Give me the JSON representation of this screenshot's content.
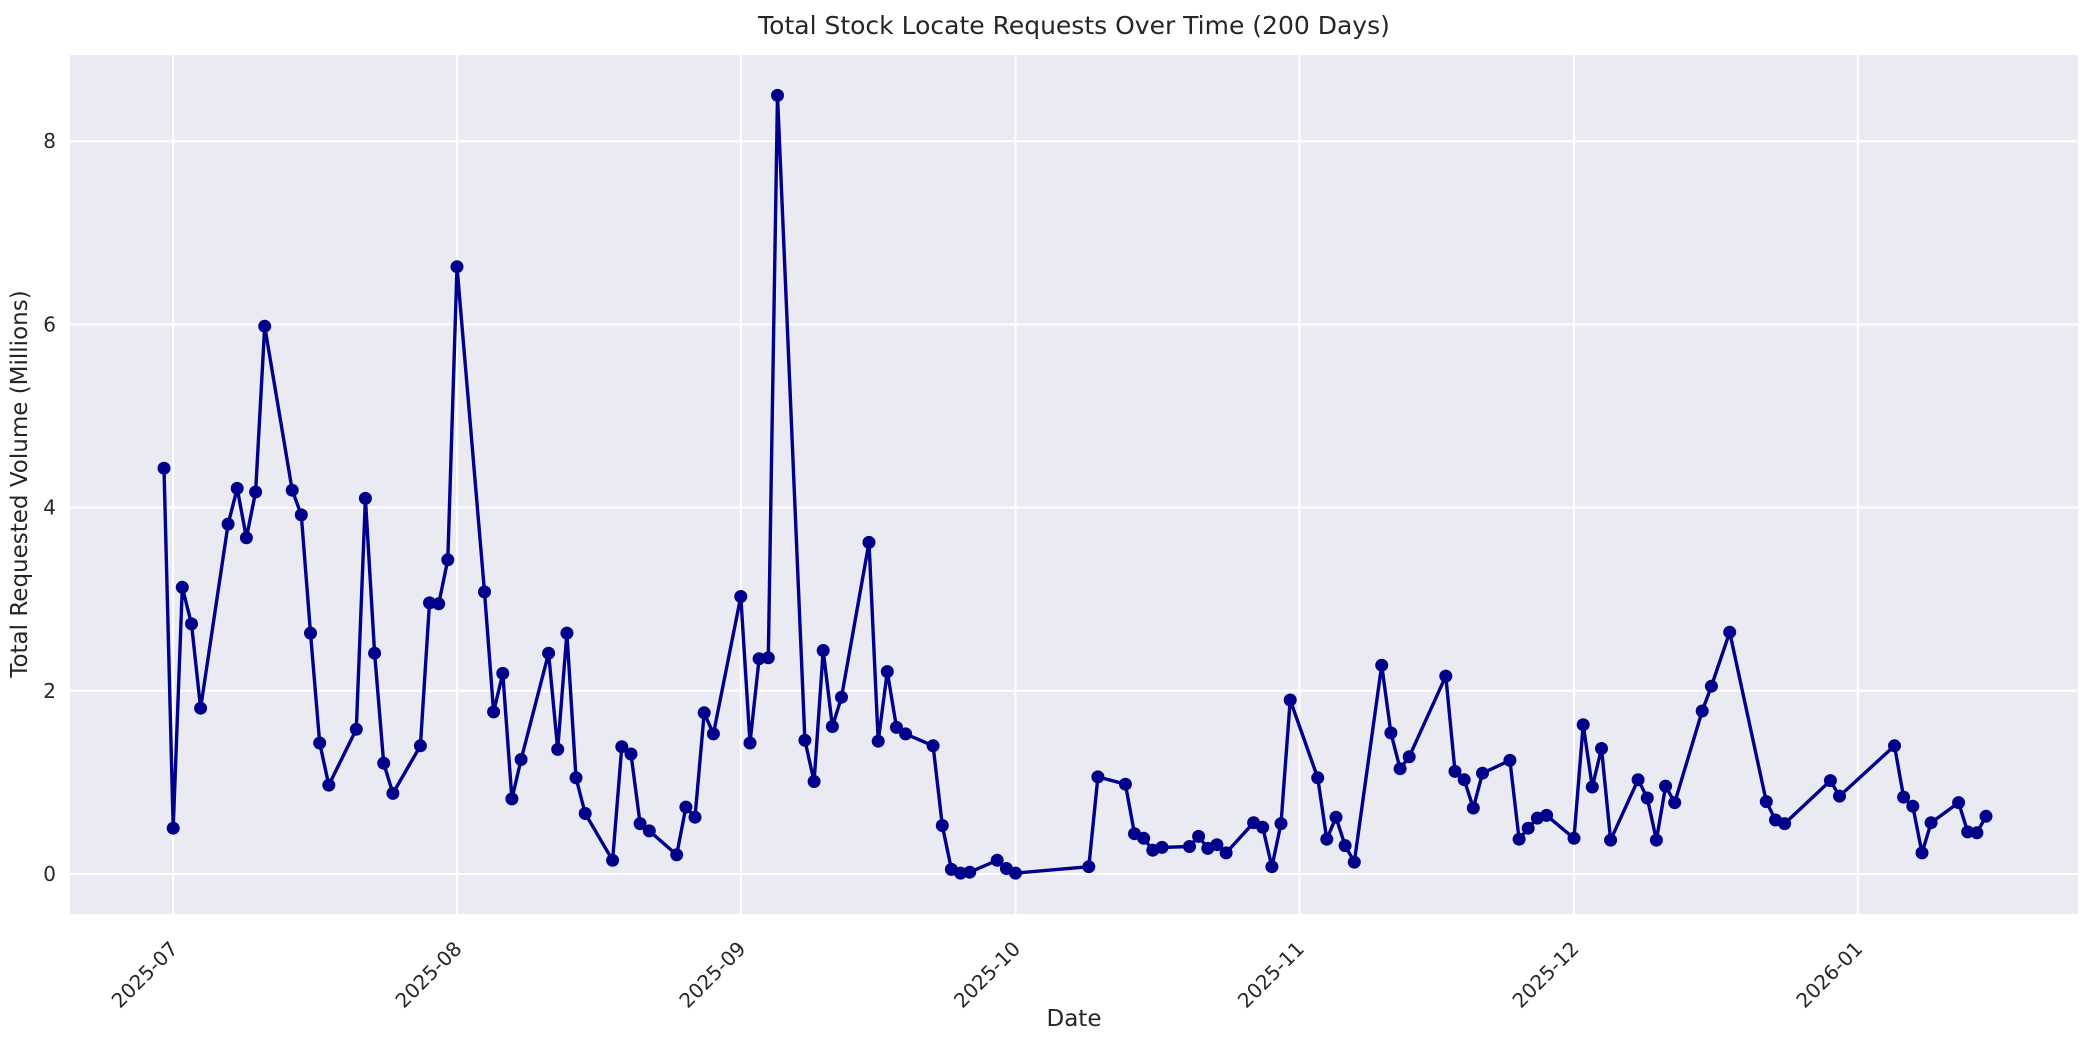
{
  "figure": {
    "title": "Total Stock Locate Requests Over Time (200 Days)",
    "xlabel": "Date",
    "ylabel": "Total Requested Volume (Millions)"
  },
  "style": {
    "plot_bg": "#eaeaf2",
    "grid_color": "#ffffff",
    "line_color": "#00008b",
    "marker_color": "#00008b",
    "text_color": "#262626",
    "figure_bg": "#ffffff"
  },
  "chart_data": {
    "type": "line",
    "title": "Total Stock Locate Requests Over Time (200 Days)",
    "xlabel": "Date",
    "ylabel": "Total Requested Volume (Millions)",
    "legend": "none",
    "grid": true,
    "marker": "circle",
    "ylim": [
      -0.43,
      8.93
    ],
    "y_ticks": [
      0,
      2,
      4,
      6,
      8
    ],
    "x_range": [
      "2025-06-30",
      "2026-01-15"
    ],
    "x_ticks": [
      {
        "label": "2025-07",
        "date": "2025-07-01"
      },
      {
        "label": "2025-08",
        "date": "2025-08-01"
      },
      {
        "label": "2025-09",
        "date": "2025-09-01"
      },
      {
        "label": "2025-10",
        "date": "2025-10-01"
      },
      {
        "label": "2025-11",
        "date": "2025-11-01"
      },
      {
        "label": "2025-12",
        "date": "2025-12-01"
      },
      {
        "label": "2026-01",
        "date": "2026-01-01"
      }
    ],
    "dates": [
      "2025-06-30",
      "2025-07-01",
      "2025-07-02",
      "2025-07-03",
      "2025-07-04",
      "2025-07-07",
      "2025-07-08",
      "2025-07-09",
      "2025-07-10",
      "2025-07-11",
      "2025-07-14",
      "2025-07-15",
      "2025-07-16",
      "2025-07-17",
      "2025-07-18",
      "2025-07-21",
      "2025-07-22",
      "2025-07-23",
      "2025-07-24",
      "2025-07-25",
      "2025-07-28",
      "2025-07-29",
      "2025-07-30",
      "2025-07-31",
      "2025-08-01",
      "2025-08-04",
      "2025-08-05",
      "2025-08-06",
      "2025-08-07",
      "2025-08-08",
      "2025-08-11",
      "2025-08-12",
      "2025-08-13",
      "2025-08-14",
      "2025-08-15",
      "2025-08-18",
      "2025-08-19",
      "2025-08-20",
      "2025-08-21",
      "2025-08-22",
      "2025-08-25",
      "2025-08-26",
      "2025-08-27",
      "2025-08-28",
      "2025-08-29",
      "2025-09-01",
      "2025-09-02",
      "2025-09-03",
      "2025-09-04",
      "2025-09-05",
      "2025-09-08",
      "2025-09-09",
      "2025-09-10",
      "2025-09-11",
      "2025-09-12",
      "2025-09-15",
      "2025-09-16",
      "2025-09-17",
      "2025-09-18",
      "2025-09-19",
      "2025-09-22",
      "2025-09-23",
      "2025-09-24",
      "2025-09-25",
      "2025-09-26",
      "2025-09-29",
      "2025-09-30",
      "2025-10-01",
      "2025-10-09",
      "2025-10-10",
      "2025-10-13",
      "2025-10-14",
      "2025-10-15",
      "2025-10-16",
      "2025-10-17",
      "2025-10-20",
      "2025-10-21",
      "2025-10-22",
      "2025-10-23",
      "2025-10-24",
      "2025-10-27",
      "2025-10-28",
      "2025-10-29",
      "2025-10-30",
      "2025-10-31",
      "2025-11-03",
      "2025-11-04",
      "2025-11-05",
      "2025-11-06",
      "2025-11-07",
      "2025-11-10",
      "2025-11-11",
      "2025-11-12",
      "2025-11-13",
      "2025-11-17",
      "2025-11-18",
      "2025-11-19",
      "2025-11-20",
      "2025-11-21",
      "2025-11-24",
      "2025-11-25",
      "2025-11-26",
      "2025-11-27",
      "2025-11-28",
      "2025-12-01",
      "2025-12-02",
      "2025-12-03",
      "2025-12-04",
      "2025-12-05",
      "2025-12-08",
      "2025-12-09",
      "2025-12-10",
      "2025-12-11",
      "2025-12-12",
      "2025-12-15",
      "2025-12-16",
      "2025-12-18",
      "2025-12-22",
      "2025-12-23",
      "2025-12-24",
      "2025-12-29",
      "2025-12-30",
      "2026-01-05",
      "2026-01-06",
      "2026-01-07",
      "2026-01-08",
      "2026-01-09",
      "2026-01-12",
      "2026-01-13",
      "2026-01-14",
      "2026-01-15"
    ],
    "values": [
      4.43,
      0.5,
      3.13,
      2.73,
      1.81,
      3.82,
      4.21,
      3.67,
      4.17,
      5.98,
      4.19,
      3.92,
      2.63,
      1.43,
      0.97,
      1.58,
      4.1,
      2.41,
      1.21,
      0.88,
      1.4,
      2.96,
      2.95,
      3.43,
      6.63,
      3.08,
      1.77,
      2.19,
      0.82,
      1.25,
      2.41,
      1.36,
      2.63,
      1.05,
      0.66,
      0.15,
      1.39,
      1.31,
      0.55,
      0.47,
      0.21,
      0.73,
      0.62,
      1.76,
      1.53,
      3.03,
      1.43,
      2.35,
      2.36,
      8.5,
      1.46,
      1.01,
      2.44,
      1.61,
      1.93,
      3.62,
      1.45,
      2.21,
      1.6,
      1.53,
      1.4,
      0.53,
      0.05,
      0.01,
      0.02,
      0.15,
      0.06,
      0.01,
      0.08,
      1.06,
      0.98,
      0.44,
      0.39,
      0.26,
      0.29,
      0.3,
      0.41,
      0.28,
      0.32,
      0.23,
      0.56,
      0.51,
      0.08,
      0.55,
      1.9,
      1.05,
      0.38,
      0.62,
      0.31,
      0.13,
      2.28,
      1.54,
      1.15,
      1.28,
      2.16,
      1.12,
      1.03,
      0.72,
      1.1,
      1.24,
      0.38,
      0.5,
      0.61,
      0.64,
      0.39,
      1.63,
      0.95,
      1.37,
      0.37,
      1.03,
      0.83,
      0.37,
      0.96,
      0.78,
      1.78,
      2.05,
      2.64,
      0.79,
      0.59,
      0.55,
      1.02,
      0.85,
      1.4,
      0.84,
      0.74,
      0.23,
      0.56,
      0.78,
      0.46,
      0.45,
      0.63
    ]
  }
}
